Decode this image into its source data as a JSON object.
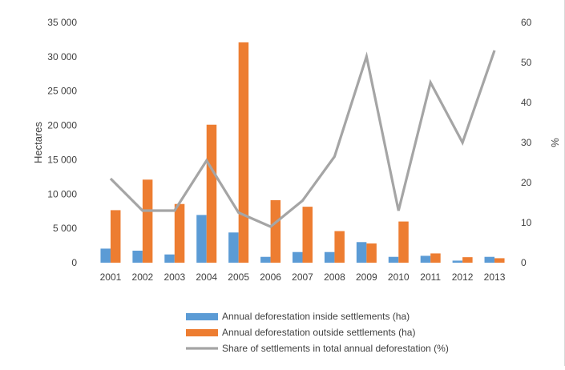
{
  "chart_data": {
    "type": "bar",
    "categories": [
      "2001",
      "2002",
      "2003",
      "2004",
      "2005",
      "2006",
      "2007",
      "2008",
      "2009",
      "2010",
      "2011",
      "2012",
      "2013"
    ],
    "series": [
      {
        "name": "Annual deforestation inside settlements (ha)",
        "type": "bar",
        "axis": "left",
        "color": "#5b9bd5",
        "values": [
          2050,
          1750,
          1200,
          6950,
          4400,
          850,
          1550,
          1550,
          3000,
          850,
          1000,
          300,
          850
        ]
      },
      {
        "name": "Annual deforestation outside settlements (ha)",
        "type": "bar",
        "axis": "left",
        "color": "#ed7d31",
        "values": [
          7650,
          12100,
          8550,
          20100,
          32100,
          9100,
          8150,
          4600,
          2800,
          6000,
          1350,
          800,
          650
        ]
      },
      {
        "name": "Share of settlements in total annual deforestation (%)",
        "type": "line",
        "axis": "right",
        "color": "#a5a5a5",
        "values": [
          21,
          13,
          13,
          25.5,
          12.5,
          9,
          15.5,
          26.5,
          51.5,
          13,
          45,
          30,
          53
        ]
      }
    ],
    "ylabel": "Hectares",
    "y2label": "%",
    "ylim": [
      0,
      35000
    ],
    "y2lim": [
      0,
      60
    ],
    "y_ticks": [
      "0",
      "5 000",
      "10 000",
      "15 000",
      "20 000",
      "25 000",
      "30 000",
      "35 000"
    ],
    "y2_ticks": [
      "0",
      "10",
      "20",
      "30",
      "40",
      "50",
      "60"
    ],
    "grid": false,
    "legend_position": "bottom"
  }
}
